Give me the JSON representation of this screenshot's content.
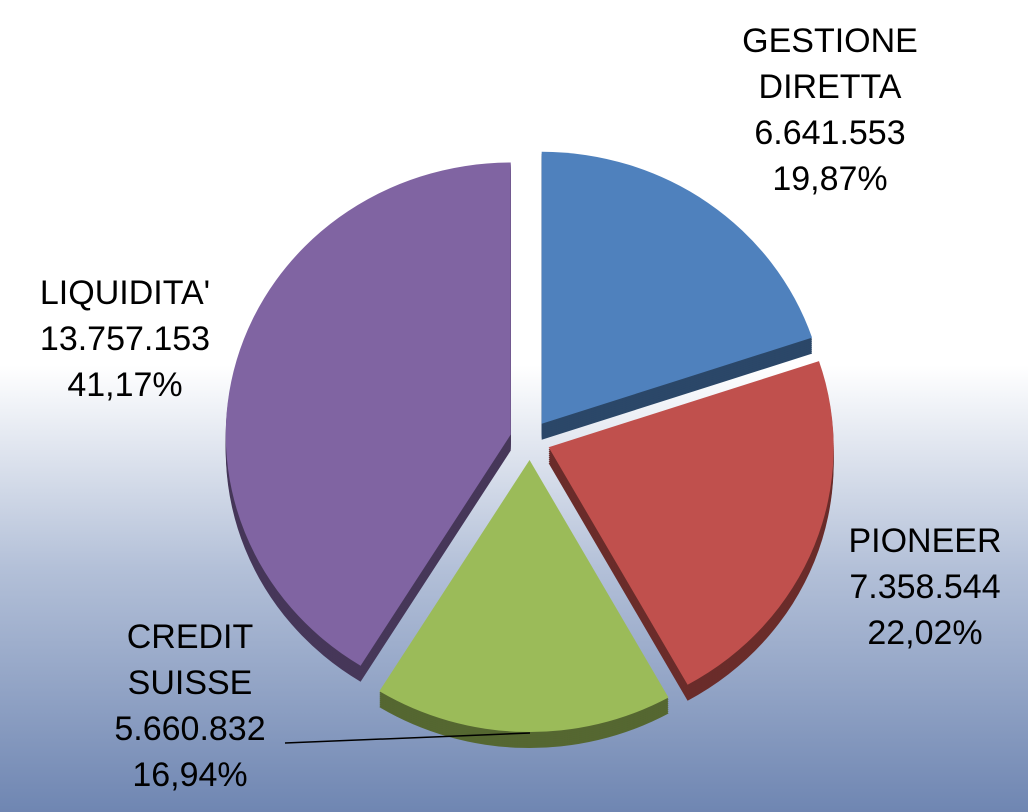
{
  "chart_data": {
    "type": "pie",
    "categories": [
      "GESTIONE DIRETTA",
      "PIONEER",
      "CREDIT SUISSE",
      "LIQUIDITA'"
    ],
    "values": [
      6641553,
      7358544,
      5660832,
      13757153
    ],
    "value_labels": [
      "6.641.553",
      "7.358.544",
      "5.660.832",
      "13.757.153"
    ],
    "percentages": [
      19.87,
      22.02,
      16.94,
      41.17
    ],
    "percentage_labels": [
      "19,87%",
      "22,02%",
      "16,94%",
      "41,17%"
    ],
    "colors": [
      "#4f81bd",
      "#c0504d",
      "#9bbb59",
      "#8064a2"
    ]
  }
}
